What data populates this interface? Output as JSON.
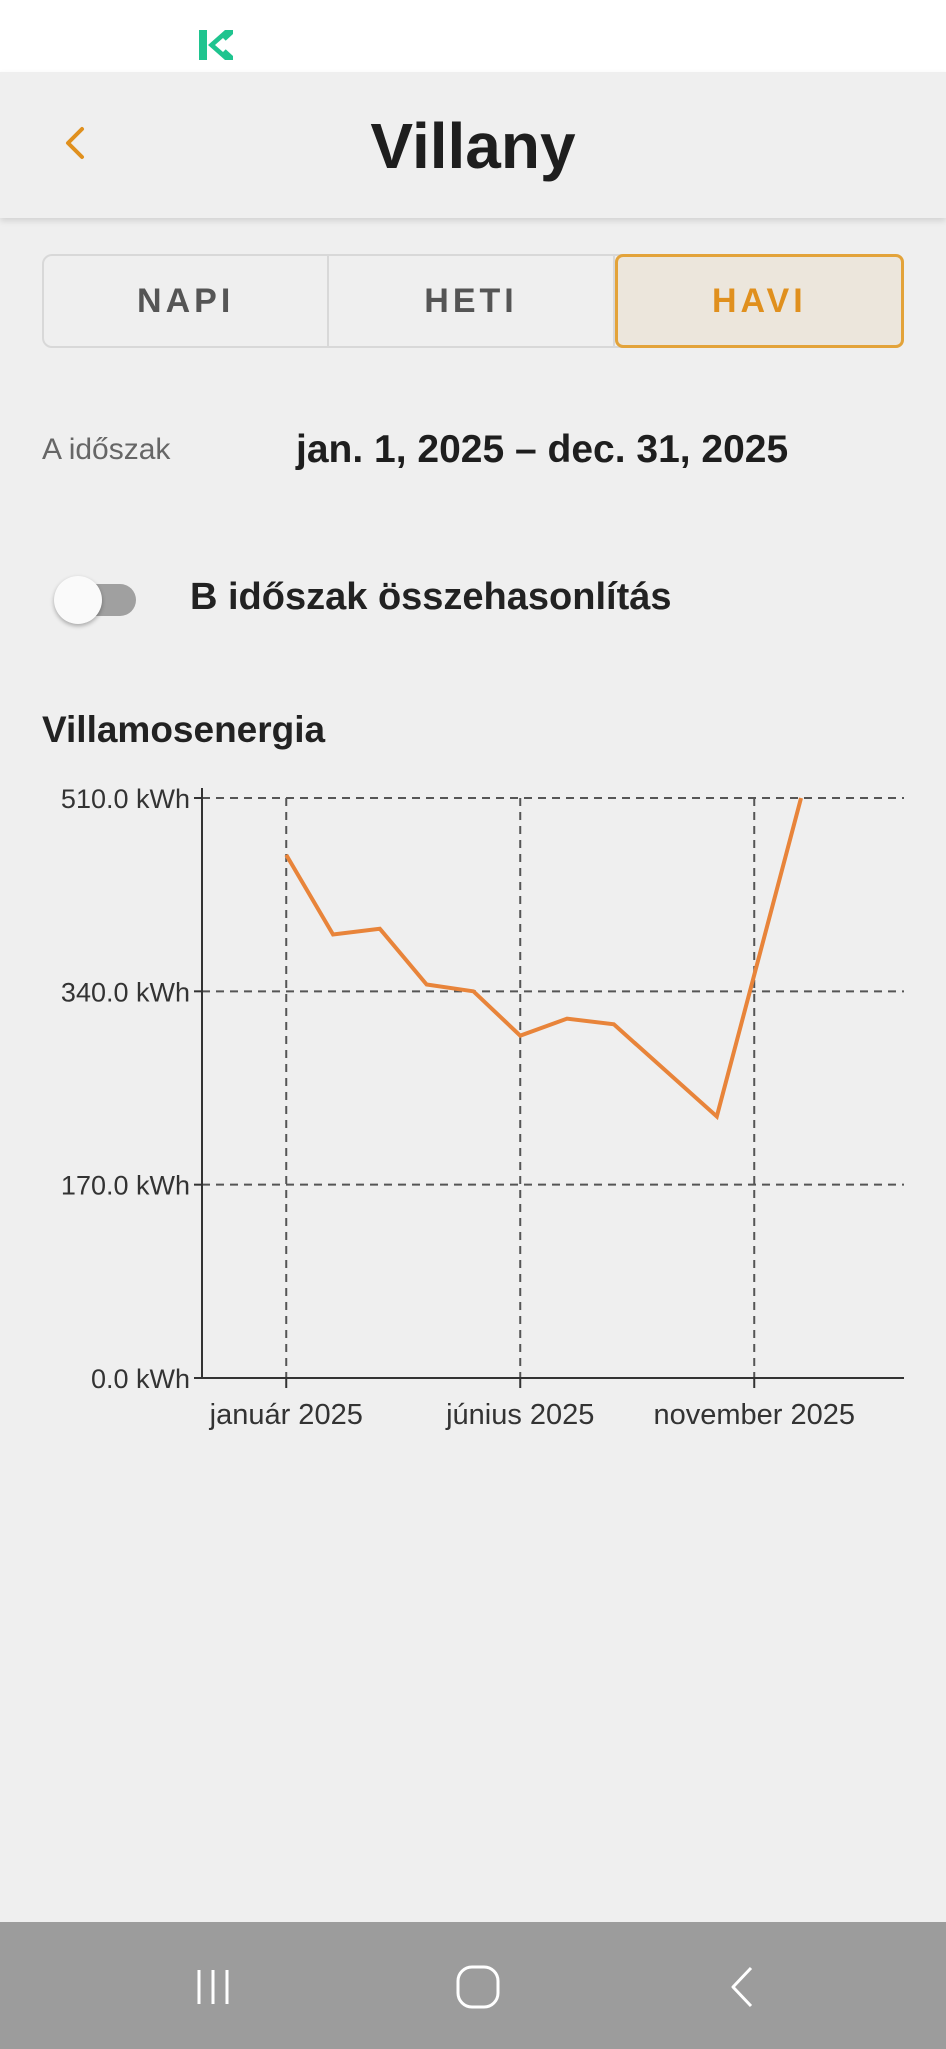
{
  "status_bar": {
    "logo_icon": "k-logo-icon",
    "logo_color": "#1fc48f"
  },
  "header": {
    "title": "Villany",
    "back_icon": "chevron-left-icon",
    "accent": "#e0901e"
  },
  "tabs": [
    {
      "label": "NAPI",
      "active": false
    },
    {
      "label": "HETI",
      "active": false
    },
    {
      "label": "HAVI",
      "active": true
    }
  ],
  "period": {
    "label": "A időszak",
    "value": "jan. 1, 2025 – dec. 31, 2025"
  },
  "compare": {
    "label": "B időszak összehasonlítás",
    "enabled": false
  },
  "chart_data": {
    "type": "line",
    "title": "Villamosenergia",
    "unit": "kWh",
    "y_ticks": [
      "0.0 kWh",
      "170.0 kWh",
      "340.0 kWh",
      "510.0 kWh"
    ],
    "ylim": [
      0,
      510
    ],
    "x_ticks": [
      "január 2025",
      "június 2025",
      "november 2025"
    ],
    "x_tick_months": [
      1,
      6,
      11
    ],
    "xlim_months": [
      -0.8,
      14.2
    ],
    "grid": true,
    "series": [
      {
        "color": "#e8843a",
        "x_months": [
          1,
          2,
          3,
          4,
          5,
          6,
          7,
          8,
          10.2,
          12
        ],
        "values": [
          460,
          390,
          395,
          346,
          340,
          301,
          316,
          311,
          230,
          510
        ]
      }
    ]
  },
  "nav_bar": {
    "recent_icon": "recent-apps-icon",
    "home_icon": "home-icon",
    "back_icon": "back-icon"
  }
}
